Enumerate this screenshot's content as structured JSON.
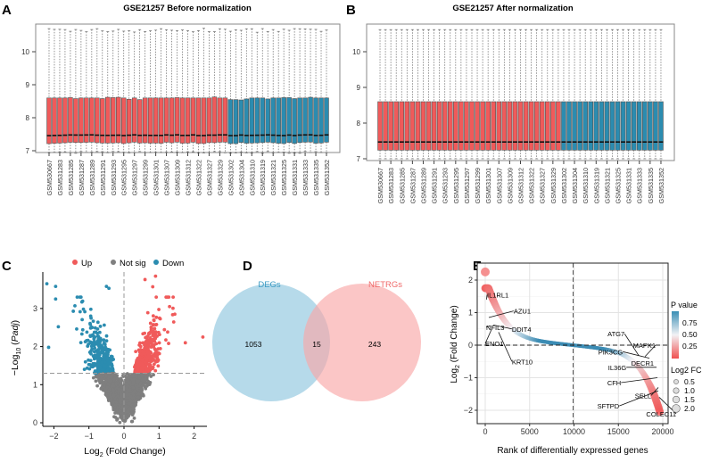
{
  "colors": {
    "red": "#f05a5a",
    "blue": "#2b8cb0",
    "grey": "#7f7f7f",
    "venn_left": "#a9d3e6",
    "venn_right": "#f9a8a8"
  },
  "panel_labels": [
    "A",
    "B",
    "C",
    "D",
    "E"
  ],
  "chart_data": [
    {
      "type": "boxplot",
      "title": "GSE21257 Before normalization",
      "ylim": [
        6.7,
        10.9
      ],
      "yticks": [
        7,
        8,
        9,
        10
      ],
      "x_tick_labels": [
        "GSM530667",
        "GSM531283",
        "GSM531285",
        "GSM531287",
        "GSM531289",
        "GSM531291",
        "GSM531293",
        "GSM531295",
        "GSM531297",
        "GSM531299",
        "GSM531301",
        "GSM531307",
        "GSM531309",
        "GSM531312",
        "GSM531322",
        "GSM531327",
        "GSM531329",
        "GSM531302",
        "GSM531304",
        "GSM531310",
        "GSM531319",
        "GSM531321",
        "GSM531325",
        "GSM531331",
        "GSM531333",
        "GSM531335",
        "GSM531352"
      ],
      "groups": [
        {
          "color": "red",
          "count": 34
        },
        {
          "color": "blue",
          "count": 19
        }
      ],
      "q3": [
        8.6,
        8.6,
        8.6,
        8.6,
        8.61,
        8.58,
        8.6,
        8.6,
        8.6,
        8.6,
        8.58,
        8.62,
        8.61,
        8.62,
        8.6,
        8.56,
        8.6,
        8.55,
        8.6,
        8.6,
        8.6,
        8.6,
        8.6,
        8.6,
        8.61,
        8.6,
        8.6,
        8.6,
        8.6,
        8.6,
        8.6,
        8.63,
        8.6,
        8.6,
        8.55,
        8.55,
        8.54,
        8.57,
        8.6,
        8.6,
        8.6,
        8.57,
        8.6,
        8.6,
        8.61,
        8.61,
        8.58,
        8.6,
        8.6,
        8.62,
        8.6,
        8.6,
        8.6
      ],
      "median": 7.47,
      "q1": 7.24,
      "whisker_high": 10.65,
      "whisker_low": 6.95
    },
    {
      "type": "boxplot",
      "title": "GSE21257 After normalization",
      "ylim": [
        6.9,
        10.8
      ],
      "yticks": [
        7,
        8,
        9,
        10
      ],
      "x_tick_labels": [
        "GSM530667",
        "GSM531283",
        "GSM531285",
        "GSM531287",
        "GSM531289",
        "GSM531291",
        "GSM531293",
        "GSM531295",
        "GSM531297",
        "GSM531299",
        "GSM531301",
        "GSM531307",
        "GSM531309",
        "GSM531312",
        "GSM531322",
        "GSM531327",
        "GSM531329",
        "GSM531302",
        "GSM531304",
        "GSM531310",
        "GSM531319",
        "GSM531321",
        "GSM531325",
        "GSM531331",
        "GSM531333",
        "GSM531335",
        "GSM531352"
      ],
      "groups": [
        {
          "color": "red",
          "count": 34
        },
        {
          "color": "blue",
          "count": 19
        }
      ],
      "q3": 8.6,
      "median": 7.47,
      "q1": 7.24,
      "whisker_high": 10.62,
      "whisker_low": 7.0
    },
    {
      "type": "scatter",
      "subtype": "volcano",
      "xlabel": "Log2 (Fold Change)",
      "ylabel": "-Log10 (Padj)",
      "xlim": [
        -2.3,
        2.3
      ],
      "ylim": [
        0,
        3.8
      ],
      "xticks": [
        -2,
        -1,
        0,
        1,
        2
      ],
      "yticks": [
        0,
        1,
        2,
        3
      ],
      "threshold_y": 1.3,
      "threshold_x": 0,
      "legend": [
        "Up",
        "Not sig",
        "Down"
      ],
      "legend_position": "top",
      "highlight_points": [
        {
          "x": -2.2,
          "y": 3.65,
          "group": "Down"
        },
        {
          "x": -1.95,
          "y": 3.58,
          "group": "Down"
        },
        {
          "x": -1.95,
          "y": 3.25,
          "group": "Down"
        },
        {
          "x": -2.15,
          "y": 1.98,
          "group": "Down"
        },
        {
          "x": -0.5,
          "y": 3.58,
          "group": "Down"
        },
        {
          "x": -0.43,
          "y": 3.53,
          "group": "Down"
        },
        {
          "x": -1.4,
          "y": 3.07,
          "group": "Down"
        },
        {
          "x": 0.9,
          "y": 3.85,
          "group": "Up"
        },
        {
          "x": 0.6,
          "y": 3.76,
          "group": "Up"
        },
        {
          "x": 0.82,
          "y": 3.57,
          "group": "Up"
        },
        {
          "x": 2.25,
          "y": 2.25,
          "group": "Up"
        },
        {
          "x": 1.75,
          "y": 2.1,
          "group": "Up"
        },
        {
          "x": 1.3,
          "y": 3.05,
          "group": "Up"
        },
        {
          "x": 1.45,
          "y": 2.85,
          "group": "Up"
        }
      ]
    },
    {
      "type": "venn",
      "sets": [
        {
          "name": "DEGs",
          "only": 1053
        },
        {
          "name": "NETRGs",
          "only": 243
        }
      ],
      "intersection": 15
    },
    {
      "type": "scatter",
      "subtype": "rank",
      "xlabel": "Rank of differentially expressed genes",
      "ylabel": "Log2 (Fold Change)",
      "xlim": [
        -800,
        20800
      ],
      "ylim": [
        -2.4,
        2.4
      ],
      "xticks": [
        0,
        5000,
        10000,
        15000,
        20000
      ],
      "yticks": [
        -2,
        -1,
        0,
        1,
        2
      ],
      "vline": 9900,
      "hline": 0,
      "grid": true,
      "color_legend": {
        "title": "P value",
        "ticks": [
          0.75,
          0.5,
          0.25
        ]
      },
      "size_legend": {
        "title": "Log2 FC",
        "values": [
          0.5,
          1.0,
          1.5,
          2.0
        ]
      },
      "labels": [
        {
          "gene": "IL1RL1",
          "rank": 150,
          "lfc": 1.4,
          "tx": 200,
          "ty": 1.55
        },
        {
          "gene": "AZU1",
          "rank": 400,
          "lfc": 0.85,
          "tx": 3200,
          "ty": 1.05
        },
        {
          "gene": "NFIL3",
          "rank": 600,
          "lfc": 0.6,
          "tx": 100,
          "ty": 0.55
        },
        {
          "gene": "DDIT4",
          "rank": 900,
          "lfc": 0.62,
          "tx": 3000,
          "ty": 0.5
        },
        {
          "gene": "ENO1",
          "rank": 700,
          "lfc": 0.48,
          "tx": 0,
          "ty": 0.05
        },
        {
          "gene": "KRT10",
          "rank": 1500,
          "lfc": 0.4,
          "tx": 3000,
          "ty": -0.5
        },
        {
          "gene": "ATG7",
          "rank": 17300,
          "lfc": -0.32,
          "tx": 15700,
          "ty": 0.35
        },
        {
          "gene": "MAPK1",
          "rank": 18000,
          "lfc": -0.35,
          "tx": 19200,
          "ty": 0.0
        },
        {
          "gene": "PIK3CG",
          "rank": 18500,
          "lfc": -0.4,
          "tx": 15500,
          "ty": -0.2
        },
        {
          "gene": "DECR1",
          "rank": 19000,
          "lfc": -0.55,
          "tx": 19000,
          "ty": -0.55
        },
        {
          "gene": "IL36G",
          "rank": 19300,
          "lfc": -0.68,
          "tx": 15900,
          "ty": -0.68
        },
        {
          "gene": "CFH",
          "rank": 19400,
          "lfc": -1.0,
          "tx": 15300,
          "ty": -1.15
        },
        {
          "gene": "SELL",
          "rank": 19500,
          "lfc": -1.3,
          "tx": 18500,
          "ty": -1.6
        },
        {
          "gene": "SFTPD",
          "rank": 19500,
          "lfc": -1.4,
          "tx": 15500,
          "ty": -1.95
        },
        {
          "gene": "COLEC11",
          "rank": 19600,
          "lfc": -1.6,
          "tx": 18500,
          "ty": -2.05
        }
      ]
    }
  ]
}
